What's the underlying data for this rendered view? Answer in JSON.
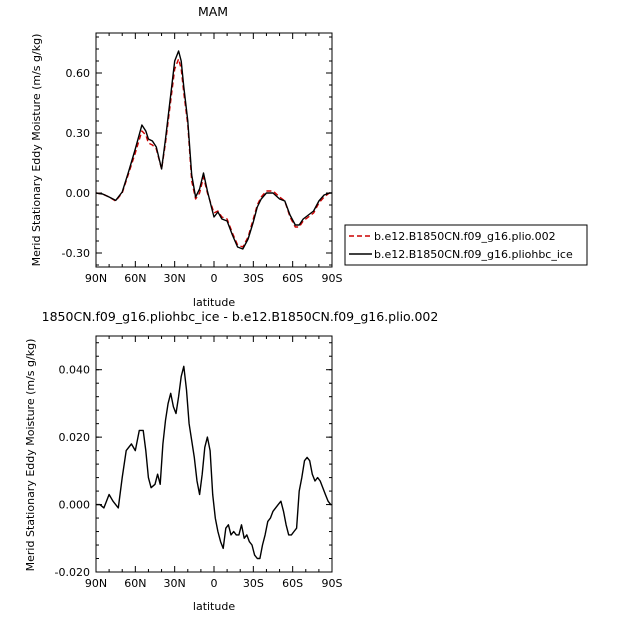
{
  "chart_data": [
    {
      "type": "line",
      "title": "MAM",
      "xlabel": "latitude",
      "ylabel": "Merid Stationary Eddy Moisture (m/s g/kg)",
      "xlim": [
        90,
        -90
      ],
      "ylim": [
        -0.37,
        0.8
      ],
      "xticks": [
        90,
        60,
        30,
        0,
        -30,
        -60,
        -90
      ],
      "xtick_labels": [
        "90N",
        "60N",
        "30N",
        "0",
        "30S",
        "60S",
        "90S"
      ],
      "yticks": [
        -0.3,
        0.0,
        0.3,
        0.6
      ],
      "ytick_labels": [
        "-0.30",
        "0.00",
        "0.30",
        "0.60"
      ],
      "legend_position": "right",
      "series": [
        {
          "name": "b.e12.B1850CN.f09_g16.plio.002",
          "color": "#cc0000",
          "dash": "dashed",
          "x": [
            90,
            85,
            80,
            75,
            70,
            65,
            60,
            55,
            52,
            50,
            47,
            44,
            40,
            37,
            33,
            30,
            27,
            25,
            23,
            20,
            17,
            14,
            11,
            8,
            5,
            2,
            0,
            -3,
            -6,
            -10,
            -14,
            -18,
            -22,
            -26,
            -30,
            -33,
            -36,
            -40,
            -45,
            -50,
            -54,
            -58,
            -62,
            -65,
            -68,
            -72,
            -76,
            -80,
            -84,
            -88,
            -90
          ],
          "y": [
            0.0,
            -0.005,
            -0.02,
            -0.04,
            0.0,
            0.1,
            0.2,
            0.31,
            0.29,
            0.25,
            0.24,
            0.22,
            0.12,
            0.25,
            0.46,
            0.62,
            0.67,
            0.62,
            0.5,
            0.34,
            0.06,
            -0.03,
            0.0,
            0.08,
            0.0,
            -0.06,
            -0.1,
            -0.09,
            -0.12,
            -0.13,
            -0.2,
            -0.26,
            -0.27,
            -0.22,
            -0.13,
            -0.06,
            -0.02,
            0.01,
            0.01,
            -0.02,
            -0.04,
            -0.12,
            -0.17,
            -0.17,
            -0.14,
            -0.12,
            -0.1,
            -0.05,
            -0.02,
            0.0,
            0.0
          ]
        },
        {
          "name": "b.e12.B1850CN.f09_g16.pliohbc_ice",
          "color": "#000000",
          "dash": "solid",
          "x": [
            90,
            85,
            80,
            75,
            70,
            65,
            60,
            55,
            52,
            50,
            47,
            44,
            40,
            37,
            33,
            30,
            27,
            25,
            23,
            20,
            17,
            14,
            11,
            8,
            5,
            2,
            0,
            -3,
            -6,
            -10,
            -14,
            -18,
            -22,
            -26,
            -30,
            -33,
            -36,
            -40,
            -45,
            -50,
            -54,
            -58,
            -62,
            -65,
            -68,
            -72,
            -76,
            -80,
            -84,
            -88,
            -90
          ],
          "y": [
            0.0,
            -0.005,
            -0.02,
            -0.037,
            0.005,
            0.11,
            0.22,
            0.34,
            0.31,
            0.27,
            0.26,
            0.23,
            0.12,
            0.27,
            0.49,
            0.66,
            0.71,
            0.66,
            0.53,
            0.36,
            0.09,
            -0.02,
            0.02,
            0.1,
            0.01,
            -0.07,
            -0.12,
            -0.095,
            -0.13,
            -0.14,
            -0.21,
            -0.27,
            -0.28,
            -0.23,
            -0.145,
            -0.07,
            -0.03,
            0.0,
            0.0,
            -0.03,
            -0.04,
            -0.11,
            -0.16,
            -0.16,
            -0.13,
            -0.11,
            -0.09,
            -0.04,
            -0.01,
            0.0,
            0.0
          ]
        }
      ]
    },
    {
      "type": "line",
      "title": "1850CN.f09_g16.pliohbc_ice - b.e12.B1850CN.f09_g16.plio.002",
      "xlabel": "latitude",
      "ylabel": "Merid Stationary Eddy Moisture (m/s g/kg)",
      "xlim": [
        90,
        -90
      ],
      "ylim": [
        -0.02,
        0.05
      ],
      "xticks": [
        90,
        60,
        30,
        0,
        -30,
        -60,
        -90
      ],
      "xtick_labels": [
        "90N",
        "60N",
        "30N",
        "0",
        "30S",
        "60S",
        "90S"
      ],
      "yticks": [
        -0.02,
        0.0,
        0.02,
        0.04
      ],
      "ytick_labels": [
        "-0.020",
        "0.000",
        "0.020",
        "0.040"
      ],
      "series": [
        {
          "color": "#000000",
          "dash": "solid",
          "x": [
            90,
            87,
            84,
            80,
            77,
            73,
            70,
            67,
            63,
            60,
            57,
            54,
            52,
            50,
            48,
            45,
            43,
            41,
            39,
            37,
            35,
            33,
            31,
            29,
            27,
            25,
            23,
            21,
            19,
            17,
            15,
            13,
            11,
            9,
            7,
            5,
            3,
            1,
            -1,
            -3,
            -5,
            -7,
            -9,
            -11,
            -13,
            -15,
            -17,
            -19,
            -21,
            -23,
            -25,
            -27,
            -29,
            -31,
            -33,
            -35,
            -37,
            -39,
            -41,
            -43,
            -45,
            -47,
            -49,
            -51,
            -53,
            -55,
            -57,
            -59,
            -61,
            -63,
            -65,
            -67,
            -69,
            -71,
            -73,
            -75,
            -77,
            -79,
            -81,
            -83,
            -85,
            -87,
            -89,
            -90
          ],
          "y": [
            0.0,
            0.0,
            -0.001,
            0.003,
            0.001,
            -0.001,
            0.008,
            0.016,
            0.018,
            0.016,
            0.022,
            0.022,
            0.016,
            0.008,
            0.005,
            0.006,
            0.009,
            0.006,
            0.018,
            0.025,
            0.03,
            0.033,
            0.029,
            0.027,
            0.032,
            0.038,
            0.041,
            0.034,
            0.024,
            0.019,
            0.014,
            0.007,
            0.003,
            0.009,
            0.017,
            0.02,
            0.016,
            0.003,
            -0.004,
            -0.008,
            -0.011,
            -0.013,
            -0.007,
            -0.006,
            -0.009,
            -0.008,
            -0.009,
            -0.009,
            -0.006,
            -0.01,
            -0.009,
            -0.011,
            -0.012,
            -0.015,
            -0.016,
            -0.016,
            -0.012,
            -0.009,
            -0.005,
            -0.004,
            -0.002,
            -0.001,
            0.0,
            0.001,
            -0.002,
            -0.006,
            -0.009,
            -0.009,
            -0.008,
            -0.007,
            0.004,
            0.008,
            0.013,
            0.014,
            0.013,
            0.009,
            0.007,
            0.008,
            0.007,
            0.005,
            0.003,
            0.001,
            0.0,
            0.0
          ]
        }
      ]
    }
  ]
}
